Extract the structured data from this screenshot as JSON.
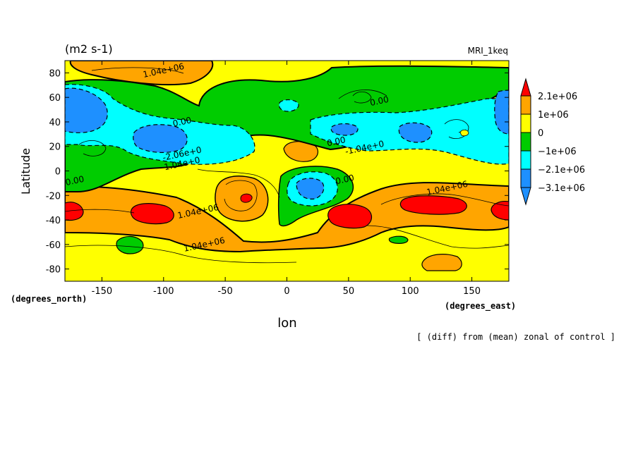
{
  "chart_data": {
    "type": "heatmap",
    "subtype": "filled-contour",
    "units_label": "(m2 s-1)",
    "model_label": "MRI_1keq",
    "xlabel": "lon",
    "ylabel": "Latitude",
    "x_unit_label": "(degrees_east)",
    "y_unit_label": "(degrees_north)",
    "footnote": "[ (diff) from (mean) zonal of control ]",
    "xlim": [
      -180,
      180
    ],
    "ylim": [
      -90,
      90
    ],
    "xticks": [
      -150,
      -100,
      -50,
      0,
      50,
      100,
      150
    ],
    "yticks": [
      -80,
      -60,
      -40,
      -20,
      0,
      20,
      40,
      60,
      80
    ],
    "colorbar": {
      "labels": [
        "2.1e+06",
        "1e+06",
        "0",
        "−1e+06",
        "−2.1e+06",
        "−3.1e+06"
      ],
      "bins": [
        {
          "range": [
            2100000,
            null
          ],
          "color": "#ff0000"
        },
        {
          "range": [
            1000000,
            2100000
          ],
          "color": "#ffa500"
        },
        {
          "range": [
            0,
            1000000
          ],
          "color": "#ffff00"
        },
        {
          "range": [
            -1000000,
            0
          ],
          "color": "#00cc00"
        },
        {
          "range": [
            -2100000,
            -1000000
          ],
          "color": "#00ffff"
        },
        {
          "range": [
            -3100000,
            -2100000
          ],
          "color": "#1e90ff"
        },
        {
          "range": [
            null,
            -3100000
          ],
          "color": "#1e90ff"
        }
      ]
    },
    "contour_labels": [
      {
        "text": "1.04e+06",
        "lon": -100,
        "lat": 82
      },
      {
        "text": "0.00",
        "lon": -85,
        "lat": 40
      },
      {
        "text": "-2.06e+0",
        "lon": -85,
        "lat": 14
      },
      {
        "text": "1.04e+0",
        "lon": -85,
        "lat": 6
      },
      {
        "text": "0.00",
        "lon": -172,
        "lat": -8
      },
      {
        "text": "0.00",
        "lon": 40,
        "lat": 24
      },
      {
        "text": "-1.04e+0",
        "lon": 63,
        "lat": 19
      },
      {
        "text": "0.00",
        "lon": 75,
        "lat": 57
      },
      {
        "text": "0.00",
        "lon": 47,
        "lat": -7
      },
      {
        "text": "1.04e+06",
        "lon": 130,
        "lat": -14
      },
      {
        "text": "1.04e+06",
        "lon": -72,
        "lat": -33
      },
      {
        "text": "1.04e+06",
        "lon": -67,
        "lat": -60
      }
    ],
    "features": [
      {
        "kind": "max",
        "value_bin": 1000000,
        "lon": -110,
        "lat": 84
      },
      {
        "kind": "min",
        "value_bin": -3100000,
        "lon": -170,
        "lat": 52
      },
      {
        "kind": "min",
        "value_bin": -3100000,
        "lon": -110,
        "lat": 25
      },
      {
        "kind": "min",
        "value_bin": -2100000,
        "lon": 45,
        "lat": 33
      },
      {
        "kind": "min",
        "value_bin": -2100000,
        "lon": 100,
        "lat": 30
      },
      {
        "kind": "min",
        "value_bin": -3100000,
        "lon": 18,
        "lat": -13
      },
      {
        "kind": "max",
        "value_bin": 2100000,
        "lon": -105,
        "lat": -32
      },
      {
        "kind": "max",
        "value_bin": 2100000,
        "lon": 50,
        "lat": -35
      },
      {
        "kind": "max",
        "value_bin": 2100000,
        "lon": 110,
        "lat": -27
      },
      {
        "kind": "max",
        "value_bin": 2100000,
        "lon": -35,
        "lat": -22
      },
      {
        "kind": "max",
        "value_bin": 2100000,
        "lon": 175,
        "lat": -31
      },
      {
        "kind": "max",
        "value_bin": 2100000,
        "lon": -172,
        "lat": -31
      }
    ]
  }
}
